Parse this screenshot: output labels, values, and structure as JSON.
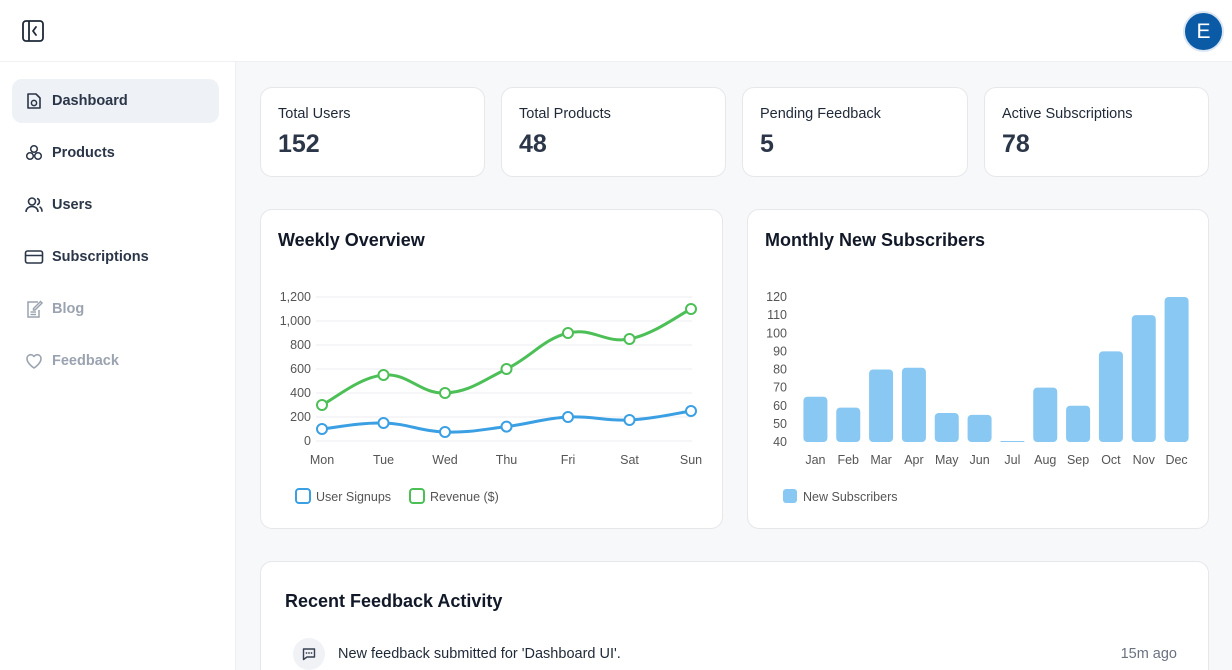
{
  "header": {
    "avatar_initial": "E"
  },
  "sidebar": {
    "items": [
      {
        "label": "Dashboard",
        "icon": "dashboard-icon",
        "active": true,
        "enabled": true
      },
      {
        "label": "Products",
        "icon": "products-icon",
        "active": false,
        "enabled": true
      },
      {
        "label": "Users",
        "icon": "users-icon",
        "active": false,
        "enabled": true
      },
      {
        "label": "Subscriptions",
        "icon": "card-icon",
        "active": false,
        "enabled": true
      },
      {
        "label": "Blog",
        "icon": "blog-icon",
        "active": false,
        "enabled": false
      },
      {
        "label": "Feedback",
        "icon": "heart-icon",
        "active": false,
        "enabled": false
      }
    ]
  },
  "stats": [
    {
      "label": "Total Users",
      "value": "152"
    },
    {
      "label": "Total Products",
      "value": "48"
    },
    {
      "label": "Pending Feedback",
      "value": "5"
    },
    {
      "label": "Active Subscriptions",
      "value": "78"
    }
  ],
  "chart_data": [
    {
      "type": "line",
      "title": "Weekly Overview",
      "categories": [
        "Mon",
        "Tue",
        "Wed",
        "Thu",
        "Fri",
        "Sat",
        "Sun"
      ],
      "ylim": [
        0,
        1200
      ],
      "yticks": [
        0,
        200,
        400,
        600,
        800,
        1000,
        1200
      ],
      "ytick_labels": [
        "0",
        "200",
        "400",
        "600",
        "800",
        "1,000",
        "1,200"
      ],
      "series": [
        {
          "name": "User Signups",
          "color": "#3b9fe3",
          "values": [
            100,
            150,
            75,
            120,
            200,
            175,
            250
          ]
        },
        {
          "name": "Revenue ($)",
          "color": "#4cbf56",
          "values": [
            300,
            550,
            400,
            600,
            900,
            850,
            1100
          ]
        }
      ],
      "legend": "bottom-left"
    },
    {
      "type": "bar",
      "title": "Monthly New Subscribers",
      "categories": [
        "Jan",
        "Feb",
        "Mar",
        "Apr",
        "May",
        "Jun",
        "Jul",
        "Aug",
        "Sep",
        "Oct",
        "Nov",
        "Dec"
      ],
      "ylim": [
        40,
        120
      ],
      "yticks": [
        40,
        50,
        60,
        70,
        80,
        90,
        100,
        110,
        120
      ],
      "series": [
        {
          "name": "New Subscribers",
          "color": "#88c8f2",
          "values": [
            65,
            59,
            80,
            81,
            56,
            55,
            40,
            70,
            60,
            90,
            110,
            120
          ]
        }
      ],
      "legend": "bottom-left"
    }
  ],
  "feedback": {
    "title": "Recent Feedback Activity",
    "items": [
      {
        "text": "New feedback submitted for 'Dashboard UI'.",
        "time": "15m ago"
      }
    ]
  }
}
